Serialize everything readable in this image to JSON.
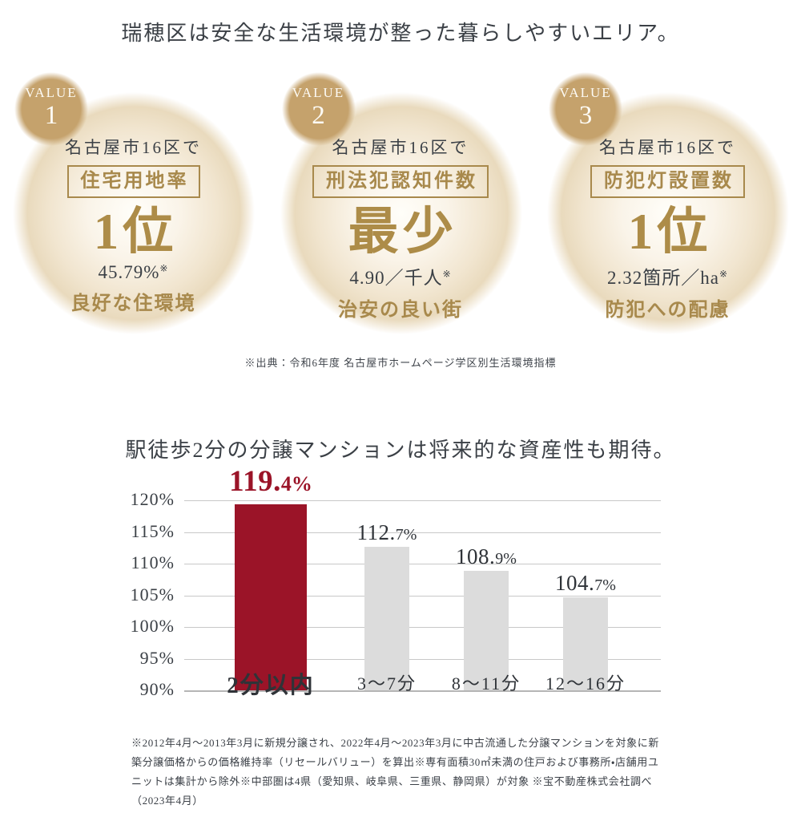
{
  "page": {
    "heading1": "瑞穂区は安全な生活環境が整った暮らしやすいエリア。",
    "source_note": "※出典：令和6年度 名古屋市ホームページ学区別生活環境指標",
    "heading2": "駅徒歩2分の分譲マンションは将来的な資産性も期待。",
    "footnote": "※2012年4月～2013年3月に新規分譲され、2022年4月～2023年3月に中古流通した分譲マンションを対象に新築分譲価格からの価格維持率（リセールバリュー）を算出※専有面積30㎡未満の住戸および事務所・店舗用ユニットは集計から除外※中部圏は4県（愛知県、岐阜県、三重県、静岡県）が対象 ※宝不動産株式会社調べ（2023年4月）"
  },
  "values": [
    {
      "badge_label": "VALUE",
      "badge_number": "1",
      "region": "名古屋市16区で",
      "metric": "住宅用地率",
      "rank": "1位",
      "stat": "45.79%",
      "stat_note": "※",
      "tagline": "良好な住環境"
    },
    {
      "badge_label": "VALUE",
      "badge_number": "2",
      "region": "名古屋市16区で",
      "metric": "刑法犯認知件数",
      "rank": "最少",
      "stat": "4.90／千人",
      "stat_note": "※",
      "tagline": "治安の良い街"
    },
    {
      "badge_label": "VALUE",
      "badge_number": "3",
      "region": "名古屋市16区で",
      "metric": "防犯灯設置数",
      "rank": "1位",
      "stat": "2.32箇所／ha",
      "stat_note": "※",
      "tagline": "防犯への配慮"
    }
  ],
  "colors": {
    "gold": "#a8894c",
    "badge_tan": "#c5a26c",
    "dark_text": "#3b4046",
    "accent_red": "#9b1428",
    "bar_gray": "#dcdcdc",
    "gridline": "#c8c8c8"
  },
  "chart_data": {
    "type": "bar",
    "title": "駅徒歩2分の分譲マンションは将来的な資産性も期待。",
    "categories": [
      "2分以内",
      "3〜7分",
      "8〜11分",
      "12〜16分"
    ],
    "values": [
      119.4,
      112.7,
      108.9,
      104.7
    ],
    "data_labels": [
      "119.4%",
      "112.7%",
      "108.9%",
      "104.7%"
    ],
    "xlabel": "",
    "ylabel": "",
    "ylim": [
      90,
      120
    ],
    "yticks": [
      90,
      95,
      100,
      105,
      110,
      115,
      120
    ],
    "ytick_suffix": "%",
    "grid": true,
    "legend": false,
    "highlight_index": 0,
    "bar_colors": [
      "#9b1428",
      "#dcdcdc",
      "#dcdcdc",
      "#dcdcdc"
    ]
  }
}
